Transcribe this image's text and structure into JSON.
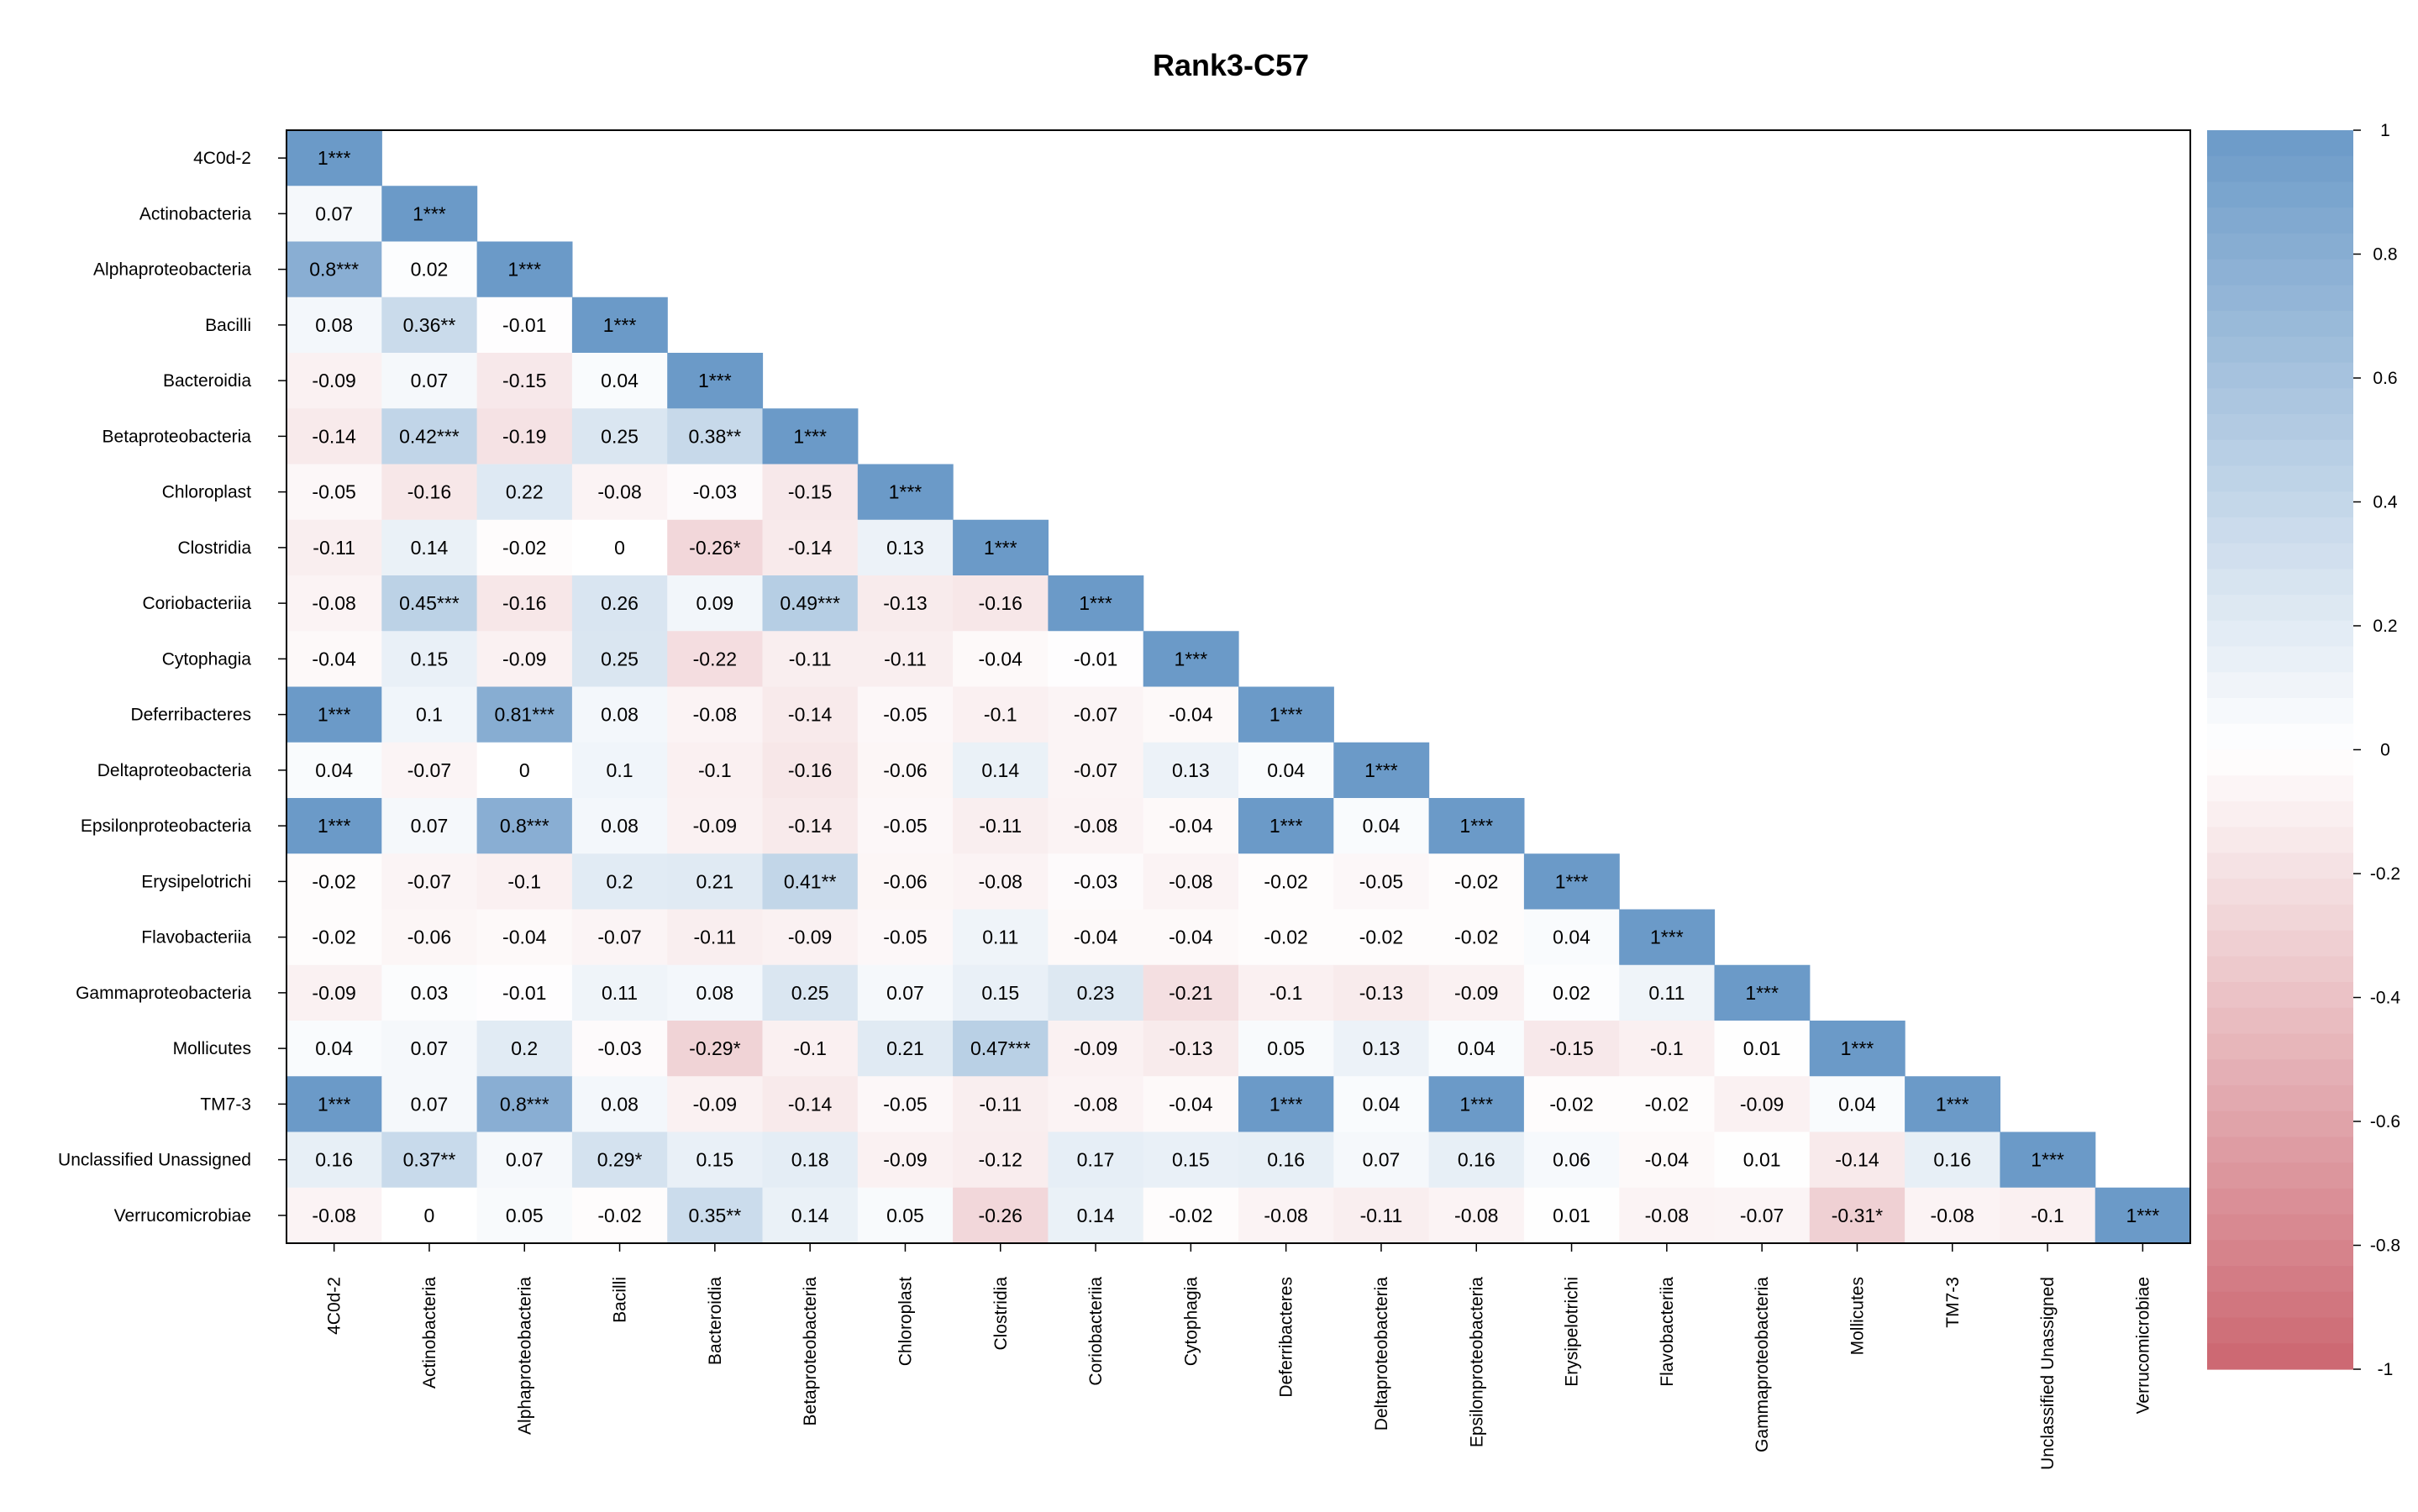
{
  "chart_data": {
    "type": "heatmap",
    "title": "Rank3-C57",
    "xlabel": "",
    "ylabel": "",
    "layout": "lower-triangle",
    "labels": [
      "4C0d-2",
      "Actinobacteria",
      "Alphaproteobacteria",
      "Bacilli",
      "Bacteroidia",
      "Betaproteobacteria",
      "Chloroplast",
      "Clostridia",
      "Coriobacteriia",
      "Cytophagia",
      "Deferribacteres",
      "Deltaproteobacteria",
      "Epsilonproteobacteria",
      "Erysipelotrichi",
      "Flavobacteriia",
      "Gammaproteobacteria",
      "Mollicutes",
      "TM7-3",
      "Unclassified Unassigned",
      "Verrucomicrobiae"
    ],
    "matrix": [
      [
        "1***"
      ],
      [
        "0.07",
        "1***"
      ],
      [
        "0.8***",
        "0.02",
        "1***"
      ],
      [
        "0.08",
        "0.36**",
        "-0.01",
        "1***"
      ],
      [
        "-0.09",
        "0.07",
        "-0.15",
        "0.04",
        "1***"
      ],
      [
        "-0.14",
        "0.42***",
        "-0.19",
        "0.25",
        "0.38**",
        "1***"
      ],
      [
        "-0.05",
        "-0.16",
        "0.22",
        "-0.08",
        "-0.03",
        "-0.15",
        "1***"
      ],
      [
        "-0.11",
        "0.14",
        "-0.02",
        "0",
        "-0.26*",
        "-0.14",
        "0.13",
        "1***"
      ],
      [
        "-0.08",
        "0.45***",
        "-0.16",
        "0.26",
        "0.09",
        "0.49***",
        "-0.13",
        "-0.16",
        "1***"
      ],
      [
        "-0.04",
        "0.15",
        "-0.09",
        "0.25",
        "-0.22",
        "-0.11",
        "-0.11",
        "-0.04",
        "-0.01",
        "1***"
      ],
      [
        "1***",
        "0.1",
        "0.81***",
        "0.08",
        "-0.08",
        "-0.14",
        "-0.05",
        "-0.1",
        "-0.07",
        "-0.04",
        "1***"
      ],
      [
        "0.04",
        "-0.07",
        "0",
        "0.1",
        "-0.1",
        "-0.16",
        "-0.06",
        "0.14",
        "-0.07",
        "0.13",
        "0.04",
        "1***"
      ],
      [
        "1***",
        "0.07",
        "0.8***",
        "0.08",
        "-0.09",
        "-0.14",
        "-0.05",
        "-0.11",
        "-0.08",
        "-0.04",
        "1***",
        "0.04",
        "1***"
      ],
      [
        "-0.02",
        "-0.07",
        "-0.1",
        "0.2",
        "0.21",
        "0.41**",
        "-0.06",
        "-0.08",
        "-0.03",
        "-0.08",
        "-0.02",
        "-0.05",
        "-0.02",
        "1***"
      ],
      [
        "-0.02",
        "-0.06",
        "-0.04",
        "-0.07",
        "-0.11",
        "-0.09",
        "-0.05",
        "0.11",
        "-0.04",
        "-0.04",
        "-0.02",
        "-0.02",
        "-0.02",
        "0.04",
        "1***"
      ],
      [
        "-0.09",
        "0.03",
        "-0.01",
        "0.11",
        "0.08",
        "0.25",
        "0.07",
        "0.15",
        "0.23",
        "-0.21",
        "-0.1",
        "-0.13",
        "-0.09",
        "0.02",
        "0.11",
        "1***"
      ],
      [
        "0.04",
        "0.07",
        "0.2",
        "-0.03",
        "-0.29*",
        "-0.1",
        "0.21",
        "0.47***",
        "-0.09",
        "-0.13",
        "0.05",
        "0.13",
        "0.04",
        "-0.15",
        "-0.1",
        "0.01",
        "1***"
      ],
      [
        "1***",
        "0.07",
        "0.8***",
        "0.08",
        "-0.09",
        "-0.14",
        "-0.05",
        "-0.11",
        "-0.08",
        "-0.04",
        "1***",
        "0.04",
        "1***",
        "-0.02",
        "-0.02",
        "-0.09",
        "0.04",
        "1***"
      ],
      [
        "0.16",
        "0.37**",
        "0.07",
        "0.29*",
        "0.15",
        "0.18",
        "-0.09",
        "-0.12",
        "0.17",
        "0.15",
        "0.16",
        "0.07",
        "0.16",
        "0.06",
        "-0.04",
        "0.01",
        "-0.14",
        "0.16",
        "1***"
      ],
      [
        "-0.08",
        "0",
        "0.05",
        "-0.02",
        "0.35**",
        "0.14",
        "0.05",
        "-0.26",
        "0.14",
        "-0.02",
        "-0.08",
        "-0.11",
        "-0.08",
        "0.01",
        "-0.08",
        "-0.07",
        "-0.31*",
        "-0.08",
        "-0.1",
        "1***"
      ]
    ],
    "colorbar": {
      "range": [
        -1,
        1
      ],
      "ticks": [
        "1",
        "0.8",
        "0.6",
        "0.4",
        "0.2",
        "0",
        "-0.2",
        "-0.4",
        "-0.6",
        "-0.8",
        "-1"
      ],
      "colors": {
        "positive": "#6b9ac8",
        "zero": "#ffffff",
        "negative": "#cc6670"
      }
    }
  }
}
